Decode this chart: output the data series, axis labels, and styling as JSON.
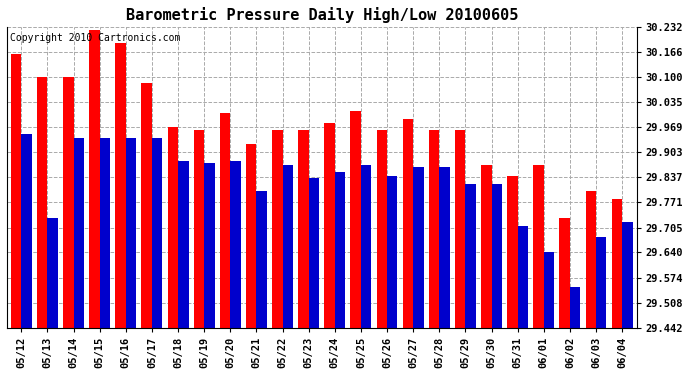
{
  "title": "Barometric Pressure Daily High/Low 20100605",
  "copyright": "Copyright 2010 Cartronics.com",
  "dates": [
    "05/12",
    "05/13",
    "05/14",
    "05/15",
    "05/16",
    "05/17",
    "05/18",
    "05/19",
    "05/20",
    "05/21",
    "05/22",
    "05/23",
    "05/24",
    "05/25",
    "05/26",
    "05/27",
    "05/28",
    "05/29",
    "05/30",
    "05/31",
    "06/01",
    "06/02",
    "06/03",
    "06/04"
  ],
  "highs": [
    30.16,
    30.1,
    30.1,
    30.225,
    30.19,
    30.085,
    29.97,
    29.96,
    30.005,
    29.925,
    29.96,
    29.96,
    29.98,
    30.01,
    29.96,
    29.99,
    29.96,
    29.96,
    29.87,
    29.84,
    29.87,
    29.73,
    29.8,
    29.78
  ],
  "lows": [
    29.95,
    29.73,
    29.94,
    29.94,
    29.94,
    29.94,
    29.88,
    29.875,
    29.88,
    29.8,
    29.87,
    29.835,
    29.85,
    29.87,
    29.84,
    29.865,
    29.865,
    29.82,
    29.82,
    29.71,
    29.64,
    29.55,
    29.68,
    29.72
  ],
  "ymin": 29.442,
  "ymax": 30.232,
  "yticks": [
    29.442,
    29.508,
    29.574,
    29.64,
    29.705,
    29.771,
    29.837,
    29.903,
    29.969,
    30.035,
    30.1,
    30.166,
    30.232
  ],
  "high_color": "#ff0000",
  "low_color": "#0000cc",
  "bg_color": "#ffffff",
  "grid_color": "#aaaaaa",
  "title_fontsize": 11,
  "copyright_fontsize": 7,
  "tick_fontsize": 7.5
}
